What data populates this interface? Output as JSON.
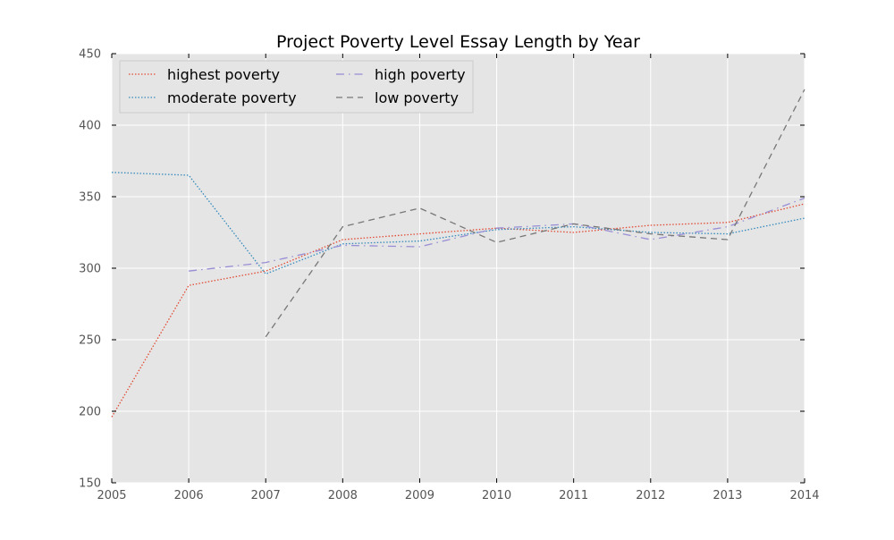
{
  "chart_data": {
    "type": "line",
    "title": "Project Poverty Level Essay Length by Year",
    "xlabel": "",
    "ylabel": "",
    "xlim": [
      2005,
      2014
    ],
    "ylim": [
      150,
      450
    ],
    "x_ticks": [
      2005,
      2006,
      2007,
      2008,
      2009,
      2010,
      2011,
      2012,
      2013,
      2014
    ],
    "y_ticks": [
      150,
      200,
      250,
      300,
      350,
      400,
      450
    ],
    "grid": true,
    "legend_position": "top-left",
    "legend_columns": 2,
    "background": "#e5e5e5",
    "series": [
      {
        "name": "highest poverty",
        "color": "#e24a33",
        "style": "dotted",
        "x": [
          2005,
          2006,
          2007,
          2008,
          2009,
          2010,
          2011,
          2012,
          2013,
          2014
        ],
        "values": [
          196,
          288,
          298,
          320,
          324,
          328,
          325,
          330,
          332,
          345
        ]
      },
      {
        "name": "moderate poverty",
        "color": "#348abd",
        "style": "dotted",
        "x": [
          2005,
          2006,
          2007,
          2008,
          2009,
          2010,
          2011,
          2012,
          2013,
          2014
        ],
        "values": [
          367,
          365,
          296,
          317,
          319,
          327,
          329,
          325,
          324,
          335
        ]
      },
      {
        "name": "high poverty",
        "color": "#988ed5",
        "style": "dashdot",
        "x": [
          2006,
          2007,
          2008,
          2009,
          2010,
          2011,
          2012,
          2013,
          2014
        ],
        "values": [
          298,
          304,
          316,
          315,
          328,
          331,
          320,
          329,
          349
        ]
      },
      {
        "name": "low poverty",
        "color": "#777777",
        "style": "dashed",
        "x": [
          2007,
          2008,
          2009,
          2010,
          2011,
          2012,
          2013,
          2014
        ],
        "values": [
          252,
          329,
          342,
          318,
          331,
          324,
          320,
          425
        ]
      }
    ]
  }
}
